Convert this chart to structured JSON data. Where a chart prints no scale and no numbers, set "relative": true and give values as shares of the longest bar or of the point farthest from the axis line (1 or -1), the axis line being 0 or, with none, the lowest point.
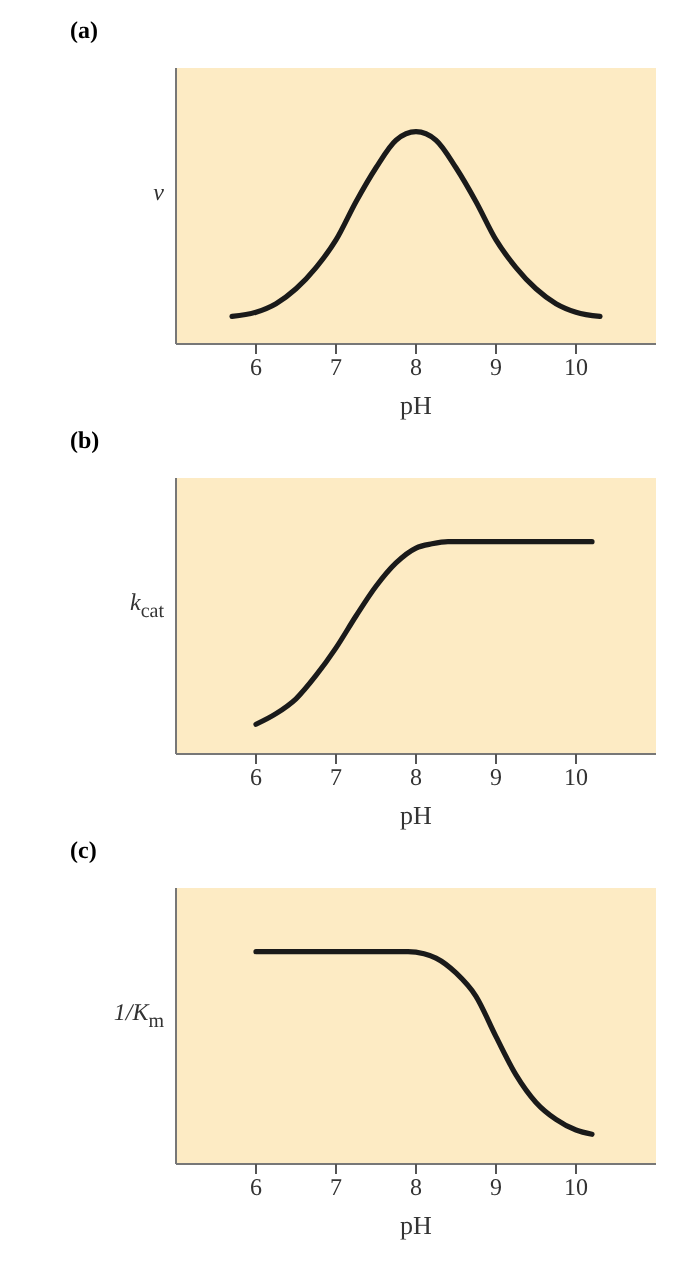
{
  "chart_data": [
    {
      "type": "line",
      "title": "(a)",
      "xlabel": "pH",
      "ylabel": "v",
      "relative": true,
      "xlim": [
        5,
        11
      ],
      "xticks": [
        6,
        7,
        8,
        9,
        10
      ],
      "grid": false,
      "legend": false,
      "marker": "none",
      "line_style": "solid",
      "series": [
        {
          "color": "#1a1a1a",
          "x": [
            5.7,
            6,
            6.25,
            6.5,
            6.75,
            7,
            7.25,
            7.5,
            7.75,
            8,
            8.25,
            8.5,
            8.75,
            9,
            9.25,
            9.5,
            9.75,
            10,
            10.3
          ],
          "values": [
            0.13,
            0.15,
            0.19,
            0.26,
            0.36,
            0.49,
            0.67,
            0.83,
            0.96,
            1,
            0.96,
            0.83,
            0.67,
            0.49,
            0.36,
            0.26,
            0.19,
            0.15,
            0.13
          ]
        }
      ]
    },
    {
      "type": "line",
      "title": "(b)",
      "xlabel": "pH",
      "ylabel": "k$_{cat}$",
      "relative": true,
      "xlim": [
        5,
        11
      ],
      "xticks": [
        6,
        7,
        8,
        9,
        10
      ],
      "grid": false,
      "legend": false,
      "marker": "none",
      "line_style": "solid",
      "series": [
        {
          "color": "#1a1a1a",
          "x": [
            6,
            6.25,
            6.5,
            6.75,
            7,
            7.25,
            7.5,
            7.75,
            8,
            8.2,
            8.4,
            9,
            10.2
          ],
          "values": [
            0.14,
            0.19,
            0.26,
            0.37,
            0.5,
            0.65,
            0.79,
            0.9,
            0.97,
            0.99,
            1,
            1,
            1
          ]
        }
      ]
    },
    {
      "type": "line",
      "title": "(c)",
      "xlabel": "pH",
      "ylabel": "1/K$_{m}$",
      "relative": true,
      "xlim": [
        5,
        11
      ],
      "xticks": [
        6,
        7,
        8,
        9,
        10
      ],
      "grid": false,
      "legend": false,
      "marker": "none",
      "line_style": "solid",
      "series": [
        {
          "color": "#1a1a1a",
          "x": [
            6,
            7,
            7.9,
            8.1,
            8.25,
            8.5,
            8.75,
            9,
            9.25,
            9.5,
            9.75,
            10,
            10.2
          ],
          "values": [
            1,
            1,
            1,
            0.99,
            0.97,
            0.9,
            0.79,
            0.6,
            0.42,
            0.29,
            0.21,
            0.16,
            0.14
          ]
        }
      ]
    }
  ]
}
